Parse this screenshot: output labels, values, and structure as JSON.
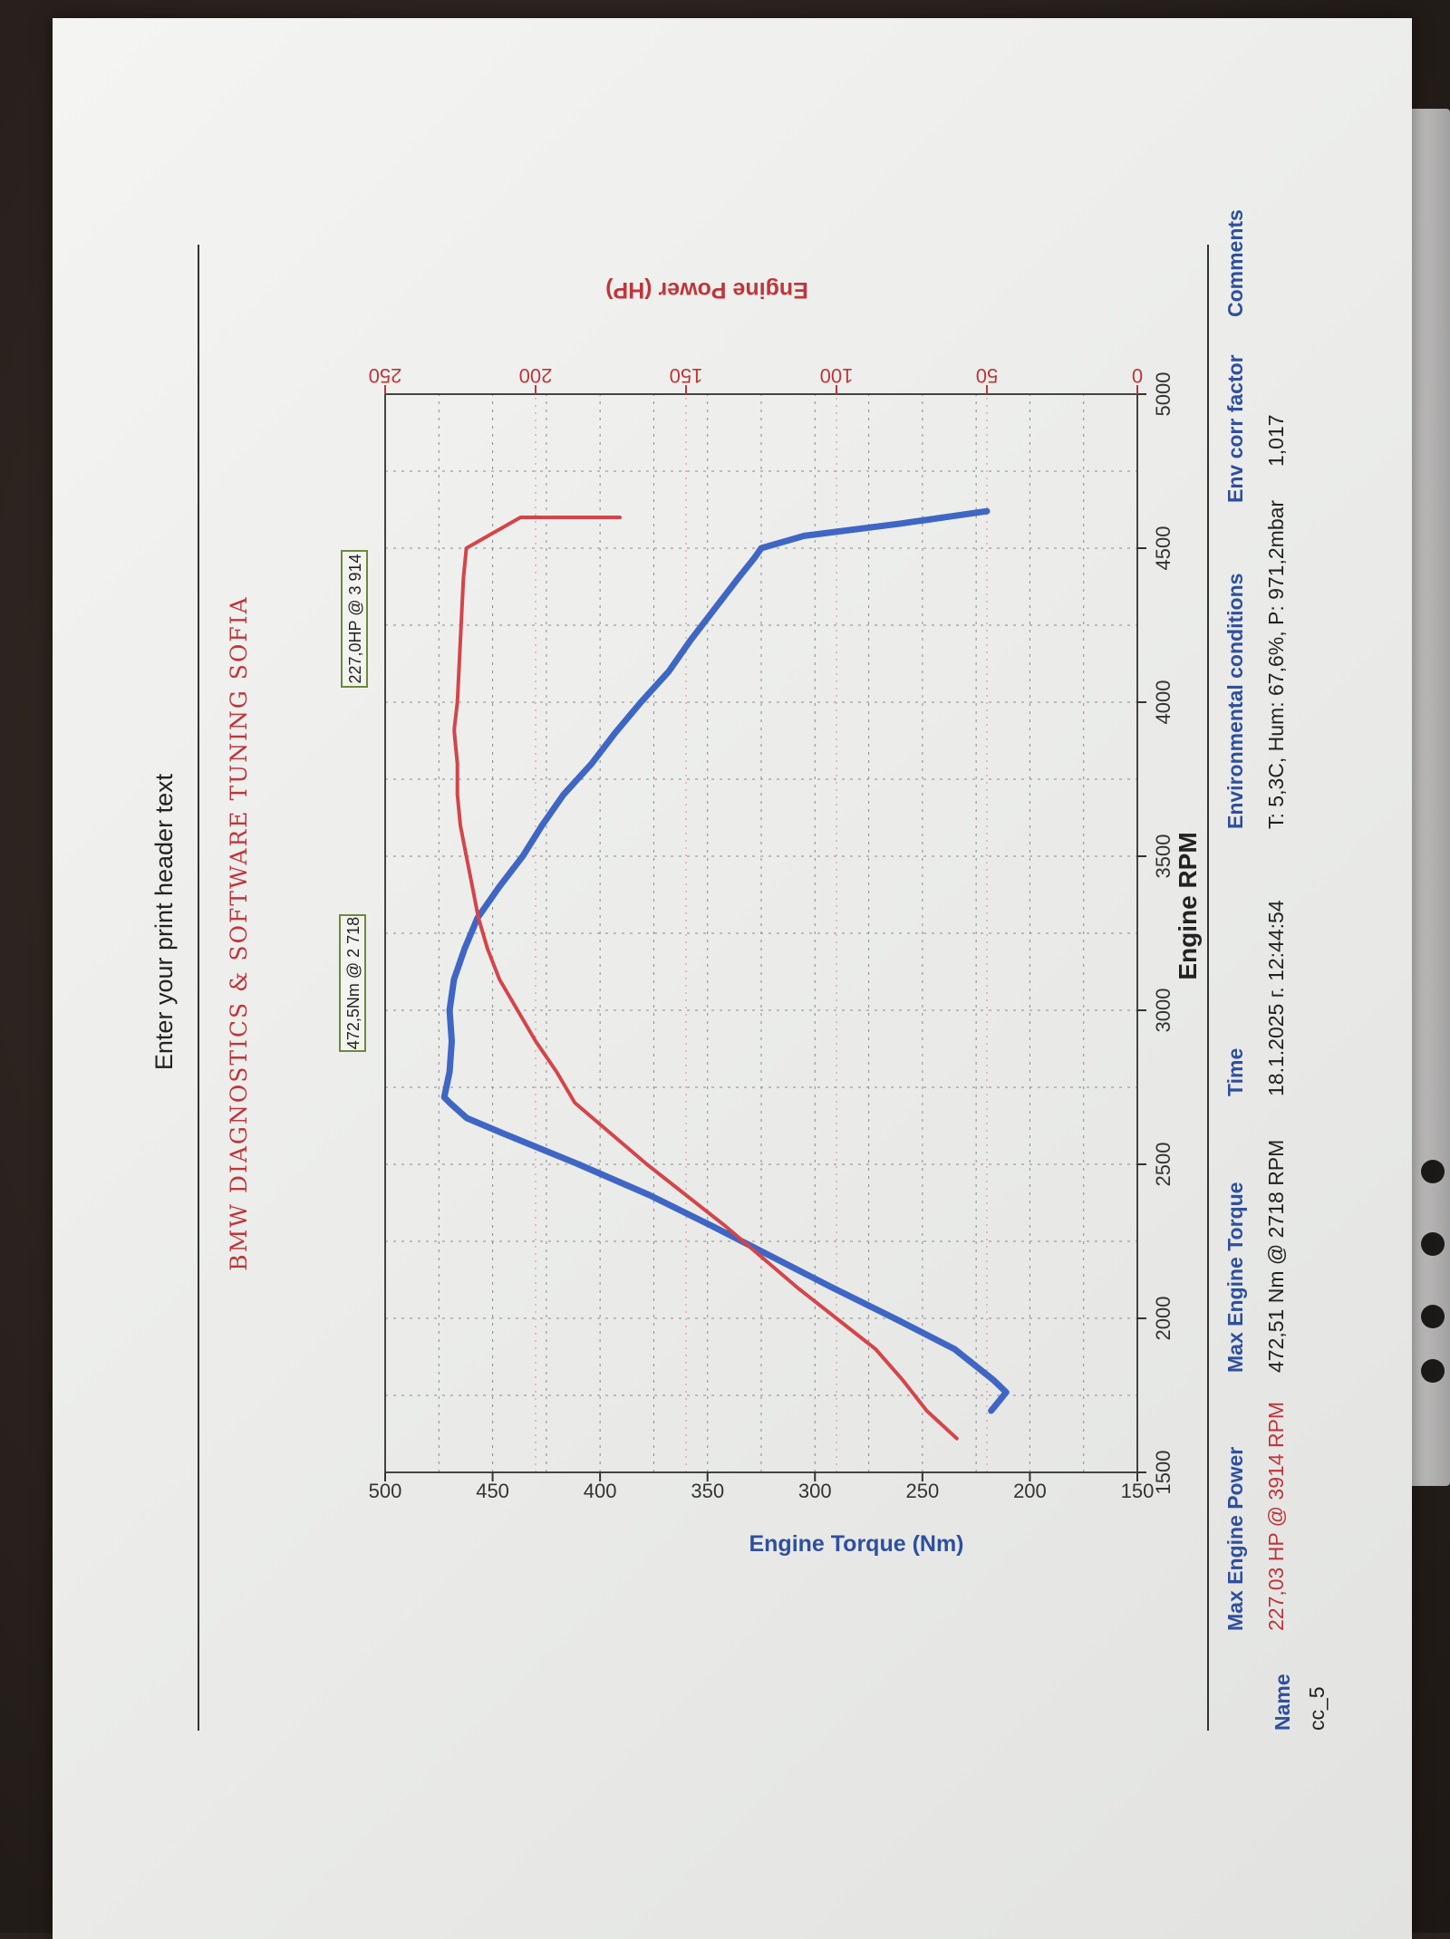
{
  "page": {
    "header_text": "Enter your print header text"
  },
  "chart_data": {
    "type": "line",
    "title": "BMW DIAGNOSTICS & SOFTWARE TUNING SOFIA",
    "xlabel": "Engine RPM",
    "ylabel_left": "Engine Torque (Nm)",
    "ylabel_right": "Engine Power (HP)",
    "xlim": [
      1500,
      5000
    ],
    "ylim_left": [
      150,
      500
    ],
    "ylim_right": [
      0,
      250
    ],
    "x_ticks": [
      "1500",
      "2000",
      "2500",
      "3000",
      "3500",
      "4000",
      "4500",
      "5000"
    ],
    "y_left_ticks": [
      "150",
      "200",
      "250",
      "300",
      "350",
      "400",
      "450",
      "500"
    ],
    "y_right_ticks": [
      "0",
      "50",
      "100",
      "150",
      "200",
      "250"
    ],
    "grid": true,
    "series": [
      {
        "name": "Engine Torque (Nm)",
        "axis": "left",
        "color": "#3f66c4",
        "points": [
          [
            1700,
            218
          ],
          [
            1760,
            211
          ],
          [
            1800,
            217
          ],
          [
            1900,
            235
          ],
          [
            2000,
            263
          ],
          [
            2100,
            292
          ],
          [
            2200,
            320
          ],
          [
            2300,
            348
          ],
          [
            2400,
            377
          ],
          [
            2500,
            410
          ],
          [
            2600,
            445
          ],
          [
            2650,
            462
          ],
          [
            2700,
            470
          ],
          [
            2718,
            472.5
          ],
          [
            2800,
            470
          ],
          [
            2900,
            469
          ],
          [
            3000,
            470
          ],
          [
            3100,
            468
          ],
          [
            3200,
            463
          ],
          [
            3300,
            457
          ],
          [
            3400,
            447
          ],
          [
            3500,
            436
          ],
          [
            3600,
            427
          ],
          [
            3700,
            417
          ],
          [
            3800,
            404
          ],
          [
            3900,
            393
          ],
          [
            4000,
            381
          ],
          [
            4100,
            368
          ],
          [
            4200,
            358
          ],
          [
            4300,
            347
          ],
          [
            4400,
            336
          ],
          [
            4470,
            328
          ],
          [
            4500,
            325
          ],
          [
            4540,
            305
          ],
          [
            4580,
            260
          ],
          [
            4620,
            220
          ]
        ],
        "label": "472,5Nm @ 2 718"
      },
      {
        "name": "Engine Power (HP)",
        "axis": "right",
        "color": "#d4454a",
        "points": [
          [
            1610,
            60
          ],
          [
            1700,
            70
          ],
          [
            1800,
            78
          ],
          [
            1900,
            87
          ],
          [
            2000,
            100
          ],
          [
            2100,
            113
          ],
          [
            2200,
            125
          ],
          [
            2300,
            137
          ],
          [
            2400,
            150
          ],
          [
            2500,
            163
          ],
          [
            2600,
            175
          ],
          [
            2700,
            187
          ],
          [
            2800,
            193
          ],
          [
            2900,
            200
          ],
          [
            3000,
            206
          ],
          [
            3100,
            212
          ],
          [
            3200,
            216
          ],
          [
            3300,
            219
          ],
          [
            3400,
            221
          ],
          [
            3500,
            223
          ],
          [
            3600,
            225
          ],
          [
            3700,
            226
          ],
          [
            3800,
            226
          ],
          [
            3900,
            227
          ],
          [
            3914,
            227.03
          ],
          [
            4000,
            226
          ],
          [
            4200,
            225
          ],
          [
            4400,
            224
          ],
          [
            4500,
            223
          ],
          [
            4600,
            205
          ],
          [
            4600,
            172
          ]
        ],
        "label": "227,0HP @ 3 914"
      }
    ]
  },
  "summary": {
    "headers": {
      "name": "Name",
      "max_power": "Max Engine Power",
      "max_torque": "Max Engine Torque",
      "time": "Time",
      "env": "Environmental conditions",
      "env_corr": "Env corr factor",
      "comments": "Comments"
    },
    "row": {
      "name": "cc_5",
      "max_power": "227,03 HP @ 3914 RPM",
      "max_torque": "472,51 Nm @ 2718 RPM",
      "time": "18.1.2025 г. 12:44:54",
      "env": "T: 5,3C, Hum: 67,6%, P: 971,2mbar",
      "env_corr": "1,017",
      "comments": ""
    }
  }
}
